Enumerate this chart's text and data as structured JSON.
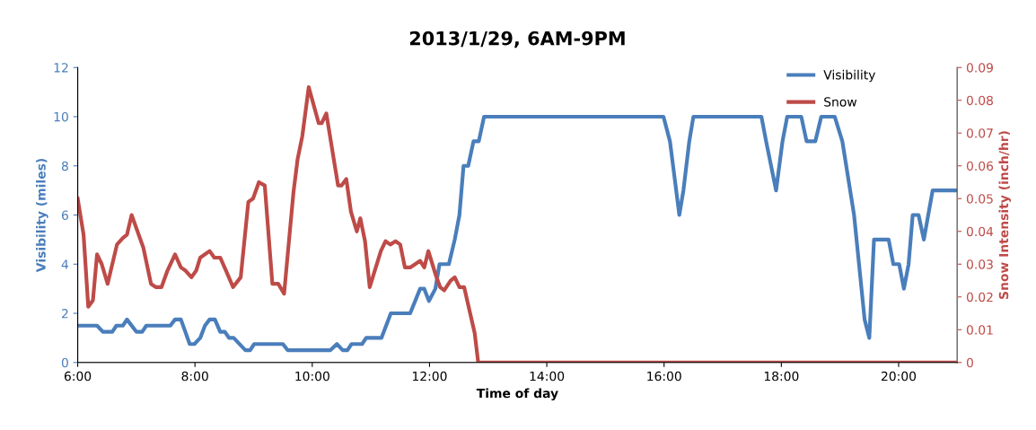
{
  "chart_data": {
    "type": "line",
    "title": "2013/1/29, 6AM-9PM",
    "xlabel": "Time of day",
    "ylabel": "Visibility (miles)",
    "y2label": "Snow Intensity (inch/hr)",
    "xlim": [
      6,
      21
    ],
    "xticks": [
      {
        "value": 6,
        "label": "6:00"
      },
      {
        "value": 8,
        "label": "8:00"
      },
      {
        "value": 10,
        "label": "10:00"
      },
      {
        "value": 12,
        "label": "12:00"
      },
      {
        "value": 14,
        "label": "14:00"
      },
      {
        "value": 16,
        "label": "16:00"
      },
      {
        "value": 18,
        "label": "18:00"
      },
      {
        "value": 20,
        "label": "20:00"
      }
    ],
    "ylim": [
      0,
      12
    ],
    "yticks": [
      0,
      2,
      4,
      6,
      8,
      10,
      12
    ],
    "y2lim": [
      0,
      0.09
    ],
    "y2ticks": [
      0,
      0.01,
      0.02,
      0.03,
      0.04,
      0.05,
      0.06,
      0.07,
      0.08,
      0.09
    ],
    "grid": false,
    "legend": "top right",
    "marker": "none",
    "line_style": "solid",
    "series": [
      {
        "name": "Visibility",
        "color": "#4a7ebb",
        "x": [
          6.0,
          6.33,
          6.43,
          6.59,
          6.66,
          6.77,
          6.84,
          7.0,
          7.1,
          7.17,
          7.58,
          7.66,
          7.76,
          7.91,
          7.99,
          8.09,
          8.17,
          8.25,
          8.34,
          8.43,
          8.51,
          8.58,
          8.66,
          8.86,
          8.94,
          9.01,
          9.5,
          9.58,
          10.31,
          10.42,
          10.52,
          10.6,
          10.67,
          10.85,
          10.92,
          11.18,
          11.34,
          11.67,
          11.84,
          11.91,
          11.99,
          12.1,
          12.17,
          12.33,
          12.43,
          12.51,
          12.58,
          12.66,
          12.75,
          12.84,
          12.93,
          15.99,
          16.1,
          16.26,
          16.33,
          16.43,
          16.5,
          17.66,
          17.74,
          17.91,
          18.02,
          18.1,
          18.34,
          18.43,
          18.58,
          18.68,
          18.91,
          19.04,
          19.24,
          19.42,
          19.5,
          19.58,
          19.83,
          19.91,
          20.01,
          20.09,
          20.17,
          20.24,
          20.34,
          20.43,
          20.58,
          21.0
        ],
        "values": [
          1.5,
          1.5,
          1.25,
          1.25,
          1.5,
          1.5,
          1.75,
          1.25,
          1.25,
          1.5,
          1.5,
          1.75,
          1.75,
          0.75,
          0.75,
          1.0,
          1.5,
          1.75,
          1.75,
          1.25,
          1.25,
          1.0,
          1.0,
          0.5,
          0.5,
          0.75,
          0.75,
          0.5,
          0.5,
          0.75,
          0.5,
          0.5,
          0.75,
          0.75,
          1.0,
          1.0,
          2.0,
          2.0,
          3.0,
          3.0,
          2.5,
          3.0,
          4.0,
          4.0,
          5.0,
          6.0,
          8.0,
          8.0,
          9.0,
          9.0,
          10,
          10,
          9,
          6,
          7,
          9,
          10,
          10,
          9,
          7,
          9,
          10,
          10,
          9,
          9,
          10,
          10,
          9,
          6,
          1.75,
          1.0,
          5,
          5,
          4,
          4,
          3,
          4,
          6,
          6,
          5,
          7,
          7
        ]
      },
      {
        "name": "Snow",
        "color": "#be4b48",
        "axis": "y2",
        "x": [
          6.0,
          6.1,
          6.18,
          6.26,
          6.33,
          6.41,
          6.51,
          6.67,
          6.77,
          6.84,
          6.92,
          7.12,
          7.25,
          7.33,
          7.43,
          7.53,
          7.66,
          7.76,
          7.84,
          7.94,
          8.02,
          8.09,
          8.25,
          8.33,
          8.43,
          8.53,
          8.65,
          8.78,
          8.91,
          8.99,
          9.09,
          9.19,
          9.32,
          9.42,
          9.52,
          9.68,
          9.75,
          9.83,
          9.94,
          10.11,
          10.16,
          10.24,
          10.34,
          10.44,
          10.5,
          10.58,
          10.66,
          10.76,
          10.82,
          10.9,
          10.98,
          11.17,
          11.25,
          11.33,
          11.42,
          11.5,
          11.58,
          11.67,
          11.84,
          11.91,
          11.98,
          12.1,
          12.18,
          12.25,
          12.36,
          12.43,
          12.51,
          12.59,
          12.77,
          12.83,
          21.0
        ],
        "values": [
          0.05,
          0.039,
          0.017,
          0.019,
          0.033,
          0.03,
          0.024,
          0.036,
          0.038,
          0.039,
          0.045,
          0.035,
          0.024,
          0.023,
          0.023,
          0.028,
          0.033,
          0.029,
          0.028,
          0.026,
          0.028,
          0.032,
          0.034,
          0.032,
          0.032,
          0.028,
          0.023,
          0.026,
          0.049,
          0.05,
          0.055,
          0.054,
          0.024,
          0.024,
          0.021,
          0.052,
          0.062,
          0.069,
          0.084,
          0.073,
          0.073,
          0.076,
          0.065,
          0.054,
          0.054,
          0.056,
          0.046,
          0.04,
          0.044,
          0.037,
          0.023,
          0.034,
          0.037,
          0.036,
          0.037,
          0.036,
          0.029,
          0.029,
          0.031,
          0.029,
          0.034,
          0.027,
          0.023,
          0.022,
          0.025,
          0.026,
          0.023,
          0.023,
          0.009,
          0,
          0
        ]
      }
    ]
  }
}
